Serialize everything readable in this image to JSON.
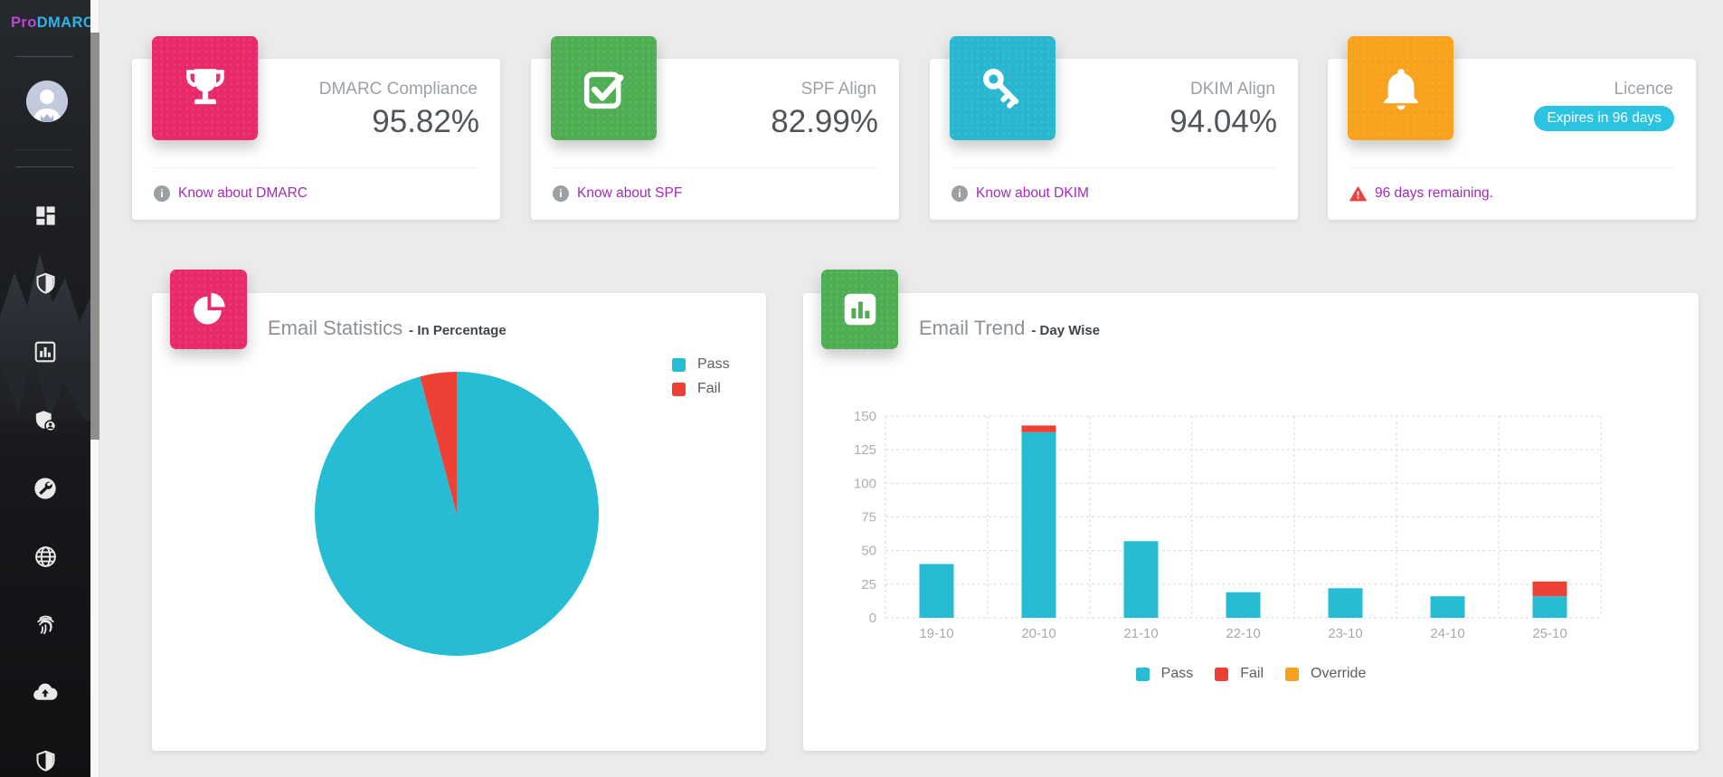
{
  "page": {
    "background": "#ecebeb"
  },
  "sidebar": {
    "logo": {
      "pro": "Pro",
      "rest": "DMARC",
      "pro_color": "#bb46d8",
      "rest_color": "#2fb2e4"
    },
    "items": [
      {
        "icon": "dashboard-icon"
      },
      {
        "icon": "shield-icon"
      },
      {
        "icon": "report-chart-icon"
      },
      {
        "icon": "shield-user-icon"
      },
      {
        "icon": "tools-icon"
      },
      {
        "icon": "globe-icon"
      },
      {
        "icon": "fingerprint-icon"
      },
      {
        "icon": "cloud-upload-icon"
      },
      {
        "icon": "shield-check-icon"
      }
    ]
  },
  "stat_cards": [
    {
      "label": "DMARC Compliance",
      "value": "95.82%",
      "footer_link": "Know about DMARC",
      "icon": "trophy-icon",
      "tile_color": "#e92a68"
    },
    {
      "label": "SPF Align",
      "value": "82.99%",
      "footer_link": "Know about SPF",
      "icon": "check-square-icon",
      "tile_color": "#4fae54"
    },
    {
      "label": "DKIM Align",
      "value": "94.04%",
      "footer_link": "Know about DKIM",
      "icon": "key-icon",
      "tile_color": "#29b6cf"
    },
    {
      "label": "Licence",
      "badge": "Expires in 96 days",
      "badge_color": "#2ac3e2",
      "footer_warning": "96 days remaining.",
      "icon": "bell-icon",
      "tile_color": "#f9a21d"
    }
  ],
  "charts": {
    "statistics": {
      "title": "Email Statistics",
      "subtitle": "- In Percentage",
      "tile_icon": "pie-chart-icon",
      "tile_color": "#e92a68"
    },
    "trend": {
      "title": "Email Trend",
      "subtitle": "- Day Wise",
      "tile_icon": "bar-chart-icon",
      "tile_color": "#4fae54"
    }
  },
  "chart_data": [
    {
      "type": "pie",
      "title": "Email Statistics - In Percentage",
      "labels": [
        "Pass",
        "Fail"
      ],
      "values": [
        95.82,
        4.18
      ],
      "colors": [
        "#26bdd4",
        "#ee4035"
      ],
      "legend_position": "right",
      "start_angle": "top",
      "direction": "clockwise"
    },
    {
      "type": "bar",
      "title": "Email Trend - Day Wise",
      "stacked": true,
      "categories": [
        "19-10",
        "20-10",
        "21-10",
        "22-10",
        "23-10",
        "24-10",
        "25-10"
      ],
      "series": [
        {
          "name": "Pass",
          "color": "#26bdd4",
          "values": [
            40,
            138,
            57,
            19,
            22,
            16,
            16
          ]
        },
        {
          "name": "Fail",
          "color": "#ee4035",
          "values": [
            0,
            5,
            0,
            0,
            0,
            0,
            11
          ]
        },
        {
          "name": "Override",
          "color": "#f6a01f",
          "values": [
            0,
            0,
            0,
            0,
            0,
            0,
            0
          ]
        }
      ],
      "ylim": [
        0,
        150
      ],
      "yticks": [
        0,
        25,
        50,
        75,
        100,
        125,
        150
      ],
      "grid": "dashed",
      "legend_position": "bottom"
    }
  ]
}
